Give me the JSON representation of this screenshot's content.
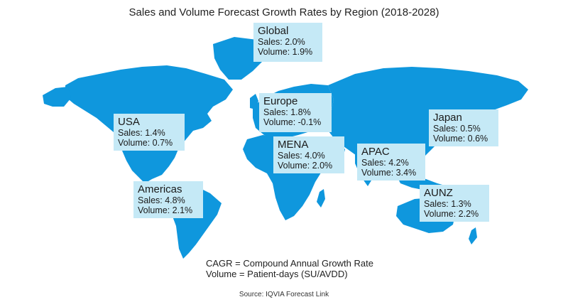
{
  "title": "Sales and Volume Forecast Growth Rates by Region (2018-2028)",
  "colors": {
    "land": "#0f97dd",
    "card": "#c5e9f6",
    "text": "#1a1a1a"
  },
  "regions": {
    "global": {
      "name": "Global",
      "sales": "Sales: 2.0%",
      "volume": "Volume: 1.9%"
    },
    "europe": {
      "name": "Europe",
      "sales": "Sales: 1.8%",
      "volume": "Volume: -0.1%"
    },
    "usa": {
      "name": "USA",
      "sales": "Sales: 1.4%",
      "volume": "Volume: 0.7%"
    },
    "japan": {
      "name": "Japan",
      "sales": "Sales: 0.5%",
      "volume": "Volume: 0.6%"
    },
    "mena": {
      "name": "MENA",
      "sales": "Sales: 4.0%",
      "volume": "Volume: 2.0%"
    },
    "apac": {
      "name": "APAC",
      "sales": "Sales: 4.2%",
      "volume": "Volume: 3.4%"
    },
    "americas": {
      "name": "Americas",
      "sales": "Sales: 4.8%",
      "volume": "Volume: 2.1%"
    },
    "aunz": {
      "name": "AUNZ",
      "sales": "Sales: 1.3%",
      "volume": "Volume: 2.2%"
    }
  },
  "notes": {
    "cagr": "CAGR = Compound Annual Growth Rate",
    "volume": "Volume = Patient-days (SU/AVDD)"
  },
  "source": "Source: IQVIA Forecast Link"
}
